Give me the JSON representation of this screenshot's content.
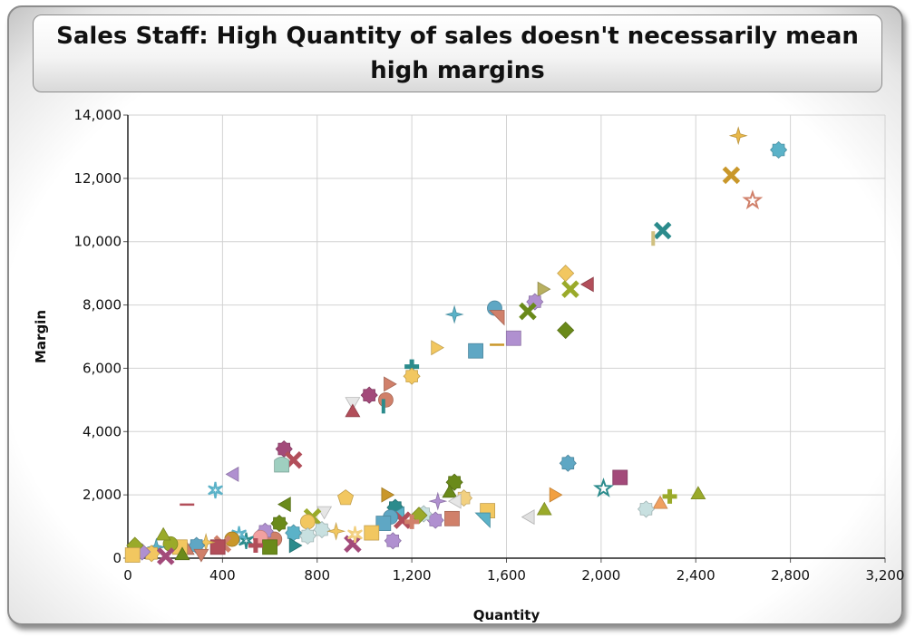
{
  "chart_data": {
    "type": "scatter",
    "title": "Sales Staff: High Quantity of sales doesn't necessarily mean high margins",
    "xlabel": "Quantity",
    "ylabel": "Margin",
    "xlim": [
      0,
      3200
    ],
    "ylim": [
      0,
      14000
    ],
    "xticks": [
      "0",
      "400",
      "800",
      "1,200",
      "1,600",
      "2,000",
      "2,400",
      "2,800",
      "3,200"
    ],
    "yticks": [
      "0",
      "2,000",
      "4,000",
      "6,000",
      "8,000",
      "10,000",
      "12,000",
      "14,000"
    ],
    "grid": true,
    "legend": "none",
    "points": [
      {
        "x": 2580,
        "y": 13350,
        "shape": "sparkle",
        "color": "#e8b84a"
      },
      {
        "x": 2750,
        "y": 12900,
        "shape": "gear",
        "color": "#5bb2c8"
      },
      {
        "x": 2550,
        "y": 12100,
        "shape": "xcross",
        "color": "#c9972a"
      },
      {
        "x": 2640,
        "y": 11300,
        "shape": "star",
        "color": "#d0806a"
      },
      {
        "x": 2260,
        "y": 10350,
        "shape": "xcross",
        "color": "#2b8b8c"
      },
      {
        "x": 2220,
        "y": 10100,
        "shape": "vbar",
        "color": "#d0c080"
      },
      {
        "x": 1850,
        "y": 9000,
        "shape": "diamond",
        "color": "#f2c760"
      },
      {
        "x": 1950,
        "y": 8650,
        "shape": "tri-left",
        "color": "#b24e5a"
      },
      {
        "x": 1870,
        "y": 8500,
        "shape": "xcross",
        "color": "#9aaa2a"
      },
      {
        "x": 1750,
        "y": 8500,
        "shape": "tri-right",
        "color": "#b8b060"
      },
      {
        "x": 1720,
        "y": 8100,
        "shape": "gear",
        "color": "#b090d0"
      },
      {
        "x": 1550,
        "y": 7900,
        "shape": "circle",
        "color": "#5fa7c4"
      },
      {
        "x": 1560,
        "y": 7600,
        "shape": "wedge",
        "color": "#d0806a"
      },
      {
        "x": 1690,
        "y": 7800,
        "shape": "xcross",
        "color": "#6a8a1a"
      },
      {
        "x": 1380,
        "y": 7700,
        "shape": "sparkle",
        "color": "#5bb2c8"
      },
      {
        "x": 1850,
        "y": 7200,
        "shape": "diamond",
        "color": "#6a8a1a"
      },
      {
        "x": 1630,
        "y": 6950,
        "shape": "square",
        "color": "#b090d0"
      },
      {
        "x": 1300,
        "y": 6650,
        "shape": "tri-right",
        "color": "#f2c760"
      },
      {
        "x": 1560,
        "y": 6750,
        "shape": "hbar",
        "color": "#c9972a"
      },
      {
        "x": 1470,
        "y": 6550,
        "shape": "square",
        "color": "#5fa7c4"
      },
      {
        "x": 1200,
        "y": 6050,
        "shape": "plus",
        "color": "#2b8b8c"
      },
      {
        "x": 1200,
        "y": 5750,
        "shape": "gear",
        "color": "#f2c760"
      },
      {
        "x": 1100,
        "y": 5500,
        "shape": "tri-right",
        "color": "#d0806a"
      },
      {
        "x": 1020,
        "y": 5150,
        "shape": "gear",
        "color": "#a34a7a"
      },
      {
        "x": 950,
        "y": 4950,
        "shape": "tri-down",
        "color": "#e6e6e6"
      },
      {
        "x": 1090,
        "y": 5000,
        "shape": "circle",
        "color": "#d0806a"
      },
      {
        "x": 1080,
        "y": 4800,
        "shape": "vbar",
        "color": "#2b8b8c"
      },
      {
        "x": 950,
        "y": 4600,
        "shape": "tri-up",
        "color": "#b24e5a"
      },
      {
        "x": 660,
        "y": 3450,
        "shape": "gear",
        "color": "#a34a7a"
      },
      {
        "x": 700,
        "y": 3100,
        "shape": "xcross",
        "color": "#b24e5a"
      },
      {
        "x": 650,
        "y": 2950,
        "shape": "bullet",
        "color": "#9fcfc0"
      },
      {
        "x": 450,
        "y": 2650,
        "shape": "tri-left",
        "color": "#b090d0"
      },
      {
        "x": 370,
        "y": 2150,
        "shape": "asterisk",
        "color": "#5bb2c8"
      },
      {
        "x": 250,
        "y": 1700,
        "shape": "hbar",
        "color": "#b24e5a"
      },
      {
        "x": 1860,
        "y": 3000,
        "shape": "gear",
        "color": "#5fa7c4"
      },
      {
        "x": 2080,
        "y": 2550,
        "shape": "square",
        "color": "#a34a7a"
      },
      {
        "x": 2010,
        "y": 2200,
        "shape": "star",
        "color": "#2b8b8c"
      },
      {
        "x": 2410,
        "y": 2000,
        "shape": "tri-up",
        "color": "#9aaa2a"
      },
      {
        "x": 2290,
        "y": 1950,
        "shape": "plus",
        "color": "#9aaa2a"
      },
      {
        "x": 2250,
        "y": 1700,
        "shape": "tri-up",
        "color": "#f0a060"
      },
      {
        "x": 2190,
        "y": 1550,
        "shape": "gear",
        "color": "#c8e0e0"
      },
      {
        "x": 1800,
        "y": 2000,
        "shape": "tri-right",
        "color": "#f2a040"
      },
      {
        "x": 1760,
        "y": 1500,
        "shape": "tri-up",
        "color": "#9aaa2a"
      },
      {
        "x": 1700,
        "y": 1300,
        "shape": "tri-left",
        "color": "#e0e0e0"
      },
      {
        "x": 1520,
        "y": 1500,
        "shape": "square",
        "color": "#f2c760"
      },
      {
        "x": 1500,
        "y": 1200,
        "shape": "wedge",
        "color": "#5bb2c8"
      },
      {
        "x": 1380,
        "y": 2400,
        "shape": "gear",
        "color": "#6a8a1a"
      },
      {
        "x": 1360,
        "y": 2050,
        "shape": "tri-up",
        "color": "#6a8a1a"
      },
      {
        "x": 1420,
        "y": 1900,
        "shape": "gear",
        "color": "#f2d080"
      },
      {
        "x": 1390,
        "y": 1800,
        "shape": "tri-left",
        "color": "#e6e6e6"
      },
      {
        "x": 1310,
        "y": 1800,
        "shape": "sparkle",
        "color": "#b090d0"
      },
      {
        "x": 1370,
        "y": 1250,
        "shape": "square",
        "color": "#d0806a"
      },
      {
        "x": 1300,
        "y": 1200,
        "shape": "gear",
        "color": "#b090d0"
      },
      {
        "x": 1250,
        "y": 1400,
        "shape": "gear",
        "color": "#c8e0e0"
      },
      {
        "x": 1230,
        "y": 1350,
        "shape": "diamond",
        "color": "#9aaa2a"
      },
      {
        "x": 1090,
        "y": 2000,
        "shape": "tri-right",
        "color": "#c9972a"
      },
      {
        "x": 1130,
        "y": 1600,
        "shape": "gear",
        "color": "#2b8b8c"
      },
      {
        "x": 1150,
        "y": 1400,
        "shape": "tri-left",
        "color": "#5bb2c8"
      },
      {
        "x": 1160,
        "y": 1200,
        "shape": "xcross",
        "color": "#b24e5a"
      },
      {
        "x": 1110,
        "y": 1300,
        "shape": "circle",
        "color": "#5fa7c4"
      },
      {
        "x": 1080,
        "y": 1100,
        "shape": "square",
        "color": "#5fa7c4"
      },
      {
        "x": 1200,
        "y": 1150,
        "shape": "plus",
        "color": "#d0806a"
      },
      {
        "x": 1030,
        "y": 800,
        "shape": "square",
        "color": "#f2c760"
      },
      {
        "x": 1120,
        "y": 550,
        "shape": "gear",
        "color": "#b090d0"
      },
      {
        "x": 950,
        "y": 450,
        "shape": "xcross",
        "color": "#a34a7a"
      },
      {
        "x": 920,
        "y": 1900,
        "shape": "pentagon",
        "color": "#f2c760"
      },
      {
        "x": 830,
        "y": 1500,
        "shape": "tri-down",
        "color": "#e6e6e6"
      },
      {
        "x": 780,
        "y": 1300,
        "shape": "xcross",
        "color": "#9aaa2a"
      },
      {
        "x": 760,
        "y": 1150,
        "shape": "circle",
        "color": "#f2c760"
      },
      {
        "x": 820,
        "y": 900,
        "shape": "gear",
        "color": "#c8e0e0"
      },
      {
        "x": 880,
        "y": 850,
        "shape": "sparkle",
        "color": "#f2c760"
      },
      {
        "x": 960,
        "y": 750,
        "shape": "asterisk",
        "color": "#f2d080"
      },
      {
        "x": 670,
        "y": 1700,
        "shape": "tri-left",
        "color": "#6a8a1a"
      },
      {
        "x": 640,
        "y": 1100,
        "shape": "gear",
        "color": "#6a8a1a"
      },
      {
        "x": 700,
        "y": 800,
        "shape": "gear",
        "color": "#5bb2c8"
      },
      {
        "x": 760,
        "y": 700,
        "shape": "gear",
        "color": "#c8e0e0"
      },
      {
        "x": 620,
        "y": 600,
        "shape": "circle",
        "color": "#d0806a"
      },
      {
        "x": 580,
        "y": 850,
        "shape": "gear",
        "color": "#b090d0"
      },
      {
        "x": 700,
        "y": 400,
        "shape": "tri-right",
        "color": "#2b8b8c"
      },
      {
        "x": 560,
        "y": 650,
        "shape": "circle",
        "color": "#f2a0a0"
      },
      {
        "x": 500,
        "y": 550,
        "shape": "asterisk",
        "color": "#2b8b8c"
      },
      {
        "x": 470,
        "y": 750,
        "shape": "asterisk",
        "color": "#5bb2c8"
      },
      {
        "x": 440,
        "y": 600,
        "shape": "circle",
        "color": "#c9972a"
      },
      {
        "x": 400,
        "y": 450,
        "shape": "xcross",
        "color": "#d0806a"
      },
      {
        "x": 380,
        "y": 350,
        "shape": "square",
        "color": "#b24e5a"
      },
      {
        "x": 330,
        "y": 500,
        "shape": "sparkle",
        "color": "#f2c760"
      },
      {
        "x": 290,
        "y": 400,
        "shape": "gear",
        "color": "#5fa7c4"
      },
      {
        "x": 250,
        "y": 250,
        "shape": "tri-up",
        "color": "#d0806a"
      },
      {
        "x": 220,
        "y": 350,
        "shape": "square",
        "color": "#f2c760"
      },
      {
        "x": 180,
        "y": 450,
        "shape": "circle",
        "color": "#9aaa2a"
      },
      {
        "x": 150,
        "y": 700,
        "shape": "tri-up",
        "color": "#9aaa2a"
      },
      {
        "x": 120,
        "y": 350,
        "shape": "sparkle",
        "color": "#5bb2c8"
      },
      {
        "x": 100,
        "y": 150,
        "shape": "gear",
        "color": "#f2c760"
      },
      {
        "x": 60,
        "y": 200,
        "shape": "diamond",
        "color": "#b090d0"
      },
      {
        "x": 30,
        "y": 400,
        "shape": "diamond",
        "color": "#9aaa2a"
      },
      {
        "x": 20,
        "y": 100,
        "shape": "square",
        "color": "#f2c760"
      },
      {
        "x": 310,
        "y": 150,
        "shape": "tri-down",
        "color": "#d0806a"
      },
      {
        "x": 230,
        "y": 80,
        "shape": "tri-up",
        "color": "#6a8a1a"
      },
      {
        "x": 160,
        "y": 60,
        "shape": "xcross",
        "color": "#a34a7a"
      },
      {
        "x": 600,
        "y": 350,
        "shape": "square",
        "color": "#6a8a1a"
      },
      {
        "x": 540,
        "y": 400,
        "shape": "plus",
        "color": "#b24e5a"
      }
    ]
  }
}
